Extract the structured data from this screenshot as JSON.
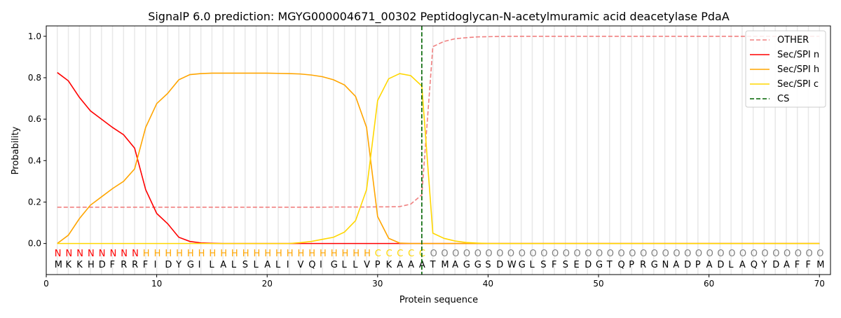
{
  "chart_data": {
    "type": "line",
    "title": "SignalP 6.0 prediction: MGYG000004671_00302 Peptidoglycan-N-acetylmuramic acid deacetylase PdaA",
    "xlabel": "Protein sequence",
    "ylabel": "Probability",
    "xlim": [
      0,
      71
    ],
    "ylim": [
      -0.15,
      1.05
    ],
    "xticks": [
      0,
      10,
      20,
      30,
      40,
      50,
      60,
      70
    ],
    "yticks": [
      0.0,
      0.2,
      0.4,
      0.6,
      0.8,
      1.0
    ],
    "legend_position": "top-right",
    "sequence": "MKKHDFRRFIDYGILALSLALIVQIGLLVPKAAATMAGGSDWGLSFSEDGTQPRGNADPADLAQYDAFFM",
    "region_labels": "NNNNNNNNHHHHHHHHHHHHHHHHHHHHHCCCCCOOOOOOOOOOOOOOOOOOOOOOOOOOOOOOOOOOOO",
    "region_colors": {
      "N": "#ff0000",
      "H": "#ffa500",
      "C": "#ffd700",
      "O": "#808080"
    },
    "cleavage_site": 34,
    "series": [
      {
        "name": "OTHER",
        "color": "#f08080",
        "dash": true,
        "values": [
          0.175,
          0.175,
          0.175,
          0.175,
          0.175,
          0.175,
          0.175,
          0.175,
          0.175,
          0.175,
          0.175,
          0.175,
          0.175,
          0.175,
          0.175,
          0.175,
          0.175,
          0.175,
          0.175,
          0.175,
          0.175,
          0.175,
          0.175,
          0.175,
          0.175,
          0.176,
          0.176,
          0.176,
          0.176,
          0.177,
          0.177,
          0.178,
          0.19,
          0.235,
          0.95,
          0.975,
          0.988,
          0.993,
          0.997,
          0.998,
          0.999,
          1,
          1,
          1,
          1,
          1,
          1,
          1,
          1,
          1,
          1,
          1,
          1,
          1,
          1,
          1,
          1,
          1,
          1,
          1,
          1,
          1,
          1,
          1,
          1,
          1,
          1,
          1,
          1,
          1
        ]
      },
      {
        "name": "Sec/SPI n",
        "color": "#ff0000",
        "dash": false,
        "values": [
          0.825,
          0.785,
          0.705,
          0.64,
          0.6,
          0.56,
          0.525,
          0.46,
          0.26,
          0.145,
          0.095,
          0.03,
          0.01,
          0.003,
          0.001,
          0,
          0,
          0,
          0,
          0,
          0,
          0,
          0,
          0,
          0,
          0,
          0,
          0,
          0,
          0,
          0,
          0,
          0,
          0,
          0,
          0,
          0,
          0,
          0,
          0,
          0,
          0,
          0,
          0,
          0,
          0,
          0,
          0,
          0,
          0,
          0,
          0,
          0,
          0,
          0,
          0,
          0,
          0,
          0,
          0,
          0,
          0,
          0,
          0,
          0,
          0,
          0,
          0,
          0,
          0
        ]
      },
      {
        "name": "Sec/SPI h",
        "color": "#ffa500",
        "dash": false,
        "values": [
          0,
          0.04,
          0.12,
          0.185,
          0.225,
          0.265,
          0.3,
          0.36,
          0.56,
          0.675,
          0.725,
          0.79,
          0.815,
          0.82,
          0.822,
          0.822,
          0.822,
          0.822,
          0.822,
          0.822,
          0.821,
          0.82,
          0.818,
          0.813,
          0.805,
          0.79,
          0.765,
          0.71,
          0.56,
          0.13,
          0.025,
          0.002,
          0,
          0,
          0,
          0,
          0,
          0,
          0,
          0,
          0,
          0,
          0,
          0,
          0,
          0,
          0,
          0,
          0,
          0,
          0,
          0,
          0,
          0,
          0,
          0,
          0,
          0,
          0,
          0,
          0,
          0,
          0,
          0,
          0,
          0,
          0,
          0,
          0,
          0
        ]
      },
      {
        "name": "Sec/SPI c",
        "color": "#ffd700",
        "dash": false,
        "values": [
          0,
          0,
          0,
          0,
          0,
          0,
          0,
          0,
          0,
          0,
          0,
          0,
          0,
          0,
          0,
          0,
          0,
          0,
          0,
          0,
          0,
          0,
          0.004,
          0.01,
          0.02,
          0.03,
          0.055,
          0.11,
          0.26,
          0.69,
          0.795,
          0.82,
          0.81,
          0.76,
          0.05,
          0.025,
          0.012,
          0.005,
          0.002,
          0,
          0,
          0,
          0,
          0,
          0,
          0,
          0,
          0,
          0,
          0,
          0,
          0,
          0,
          0,
          0,
          0,
          0,
          0,
          0,
          0,
          0,
          0,
          0,
          0,
          0,
          0,
          0,
          0,
          0,
          0
        ]
      },
      {
        "name": "CS",
        "color": "#006400",
        "dash": true,
        "values": []
      }
    ]
  }
}
